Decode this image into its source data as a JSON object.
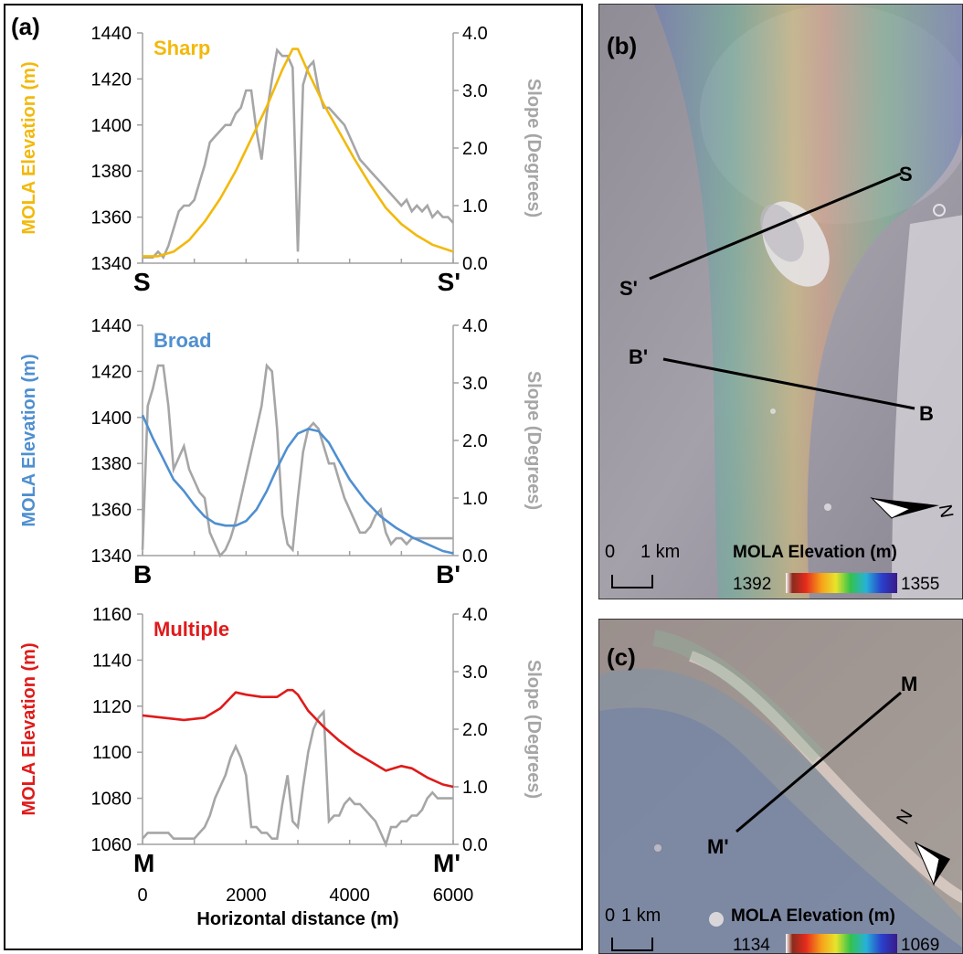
{
  "panel_a": {
    "label": "(a)",
    "x_axis": {
      "title": "Horizontal distance (m)",
      "ticks": [
        "0",
        "2000",
        "4000",
        "6000"
      ]
    }
  },
  "panel_b": {
    "label": "(b)",
    "profile_labels": [
      "S",
      "S'",
      "B'",
      "B"
    ],
    "scale_bar": {
      "zero": "0",
      "length": "1 km"
    },
    "colorbar": {
      "title": "MOLA Elevation (m)",
      "min_label": "1392",
      "max_label": "1355"
    },
    "north_label": "N"
  },
  "panel_c": {
    "label": "(c)",
    "profile_labels": [
      "M",
      "M'"
    ],
    "scale_bar": {
      "zero": "0",
      "length": "1 km"
    },
    "colorbar": {
      "title": "MOLA Elevation (m)",
      "min_label": "1134",
      "max_label": "1069"
    },
    "north_label": "N"
  },
  "chart_data": [
    {
      "type": "line",
      "annotation": "Sharp",
      "ylabel": "MOLA Elevation (m)",
      "y2label": "Slope (Degrees)",
      "ylim": [
        1340,
        1440
      ],
      "yticks": [
        "1440",
        "1420",
        "1400",
        "1380",
        "1360",
        "1340"
      ],
      "y2lim": [
        0,
        4
      ],
      "y2ticks": [
        "4.0",
        "3.0",
        "2.0",
        "1.0",
        "0.0"
      ],
      "xlim": [
        0,
        6000
      ],
      "endpoint_labels": [
        "S",
        "S'"
      ],
      "colors": {
        "elevation": "#f2b90c",
        "slope": "#a6a6a6"
      },
      "elevation": {
        "x": [
          0,
          300,
          600,
          900,
          1200,
          1500,
          1800,
          2100,
          2400,
          2700,
          2900,
          3000,
          3200,
          3500,
          3800,
          4100,
          4400,
          4700,
          5000,
          5300,
          5600,
          6000
        ],
        "y": [
          1343,
          1343,
          1345,
          1350,
          1358,
          1368,
          1380,
          1394,
          1408,
          1424,
          1433,
          1433,
          1423,
          1409,
          1397,
          1385,
          1374,
          1364,
          1357,
          1352,
          1348,
          1345
        ]
      },
      "slope": {
        "x": [
          0,
          100,
          200,
          300,
          400,
          500,
          600,
          700,
          800,
          900,
          1000,
          1100,
          1200,
          1300,
          1400,
          1500,
          1600,
          1700,
          1800,
          1900,
          2000,
          2100,
          2200,
          2300,
          2400,
          2500,
          2600,
          2700,
          2800,
          2900,
          3000,
          3100,
          3200,
          3300,
          3400,
          3500,
          3600,
          3700,
          3800,
          3900,
          4000,
          4100,
          4200,
          4300,
          4400,
          4500,
          4600,
          4700,
          4800,
          4900,
          5000,
          5100,
          5200,
          5300,
          5400,
          5500,
          5600,
          5700,
          5800,
          5900,
          6000
        ],
        "y": [
          0.1,
          0.1,
          0.1,
          0.2,
          0.1,
          0.3,
          0.6,
          0.9,
          1.0,
          1.0,
          1.1,
          1.4,
          1.7,
          2.1,
          2.2,
          2.3,
          2.4,
          2.4,
          2.6,
          2.7,
          3.0,
          3.0,
          2.3,
          1.8,
          2.6,
          3.2,
          3.7,
          3.6,
          3.6,
          3.4,
          0.2,
          3.1,
          3.4,
          3.5,
          3.0,
          2.7,
          2.7,
          2.6,
          2.5,
          2.4,
          2.2,
          2.0,
          1.8,
          1.7,
          1.6,
          1.5,
          1.4,
          1.3,
          1.2,
          1.1,
          1.0,
          1.1,
          0.9,
          1.0,
          0.9,
          1.0,
          0.8,
          0.9,
          0.8,
          0.8,
          0.7
        ]
      }
    },
    {
      "type": "line",
      "annotation": "Broad",
      "ylabel": "MOLA Elevation (m)",
      "y2label": "Slope (Degrees)",
      "ylim": [
        1340,
        1440
      ],
      "yticks": [
        "1440",
        "1420",
        "1400",
        "1380",
        "1360",
        "1340"
      ],
      "y2lim": [
        0,
        4
      ],
      "y2ticks": [
        "4.0",
        "3.0",
        "2.0",
        "1.0",
        "0.0"
      ],
      "xlim": [
        0,
        6000
      ],
      "endpoint_labels": [
        "B",
        "B'"
      ],
      "colors": {
        "elevation": "#4f8fd0",
        "slope": "#a6a6a6"
      },
      "elevation": {
        "x": [
          0,
          200,
          400,
          600,
          800,
          1000,
          1200,
          1400,
          1600,
          1800,
          2000,
          2200,
          2400,
          2600,
          2800,
          3000,
          3200,
          3400,
          3600,
          3800,
          4000,
          4300,
          4600,
          4900,
          5200,
          5500,
          5800,
          6000
        ],
        "y": [
          1401,
          1391,
          1382,
          1373,
          1368,
          1362,
          1357,
          1354,
          1353,
          1353,
          1355,
          1360,
          1368,
          1378,
          1387,
          1393,
          1395,
          1394,
          1389,
          1381,
          1373,
          1364,
          1357,
          1352,
          1348,
          1345,
          1342,
          1341
        ]
      },
      "slope": {
        "x": [
          0,
          100,
          200,
          300,
          400,
          500,
          600,
          700,
          800,
          900,
          1000,
          1100,
          1200,
          1300,
          1400,
          1500,
          1600,
          1700,
          1800,
          1900,
          2000,
          2100,
          2200,
          2300,
          2400,
          2500,
          2600,
          2700,
          2800,
          2900,
          3000,
          3100,
          3200,
          3300,
          3400,
          3500,
          3600,
          3700,
          3800,
          3900,
          4000,
          4100,
          4200,
          4300,
          4400,
          4500,
          4600,
          4700,
          4800,
          4900,
          5000,
          5100,
          5200,
          5300,
          5400,
          5500,
          5600,
          5700,
          5800,
          5900,
          6000
        ],
        "y": [
          0.1,
          2.6,
          2.9,
          3.3,
          3.3,
          2.6,
          1.5,
          1.7,
          1.9,
          1.5,
          1.3,
          1.1,
          1.0,
          0.4,
          0.2,
          0.0,
          0.1,
          0.3,
          0.6,
          1.0,
          1.4,
          1.8,
          2.2,
          2.6,
          3.3,
          3.2,
          2.2,
          0.7,
          0.2,
          0.1,
          1.0,
          1.8,
          2.2,
          2.3,
          2.2,
          1.9,
          1.6,
          1.6,
          1.3,
          1.0,
          0.8,
          0.6,
          0.4,
          0.4,
          0.5,
          0.7,
          0.8,
          0.4,
          0.2,
          0.3,
          0.3,
          0.2,
          0.3,
          0.3,
          0.3,
          0.3,
          0.3,
          0.3,
          0.3,
          0.3,
          0.3
        ]
      }
    },
    {
      "type": "line",
      "annotation": "Multiple",
      "ylabel": "MOLA Elevation (m)",
      "y2label": "Slope (Degrees)",
      "ylim": [
        1060,
        1160
      ],
      "yticks": [
        "1160",
        "1140",
        "1120",
        "1100",
        "1080",
        "1060"
      ],
      "y2lim": [
        0,
        4
      ],
      "y2ticks": [
        "4.0",
        "3.0",
        "2.0",
        "1.0",
        "0.0"
      ],
      "xlim": [
        0,
        6000
      ],
      "endpoint_labels": [
        "M",
        "M'"
      ],
      "colors": {
        "elevation": "#e01a1a",
        "slope": "#a6a6a6"
      },
      "elevation": {
        "x": [
          0,
          400,
          800,
          1200,
          1500,
          1800,
          2000,
          2300,
          2600,
          2800,
          2900,
          3000,
          3200,
          3500,
          3800,
          4100,
          4400,
          4700,
          5000,
          5200,
          5500,
          5800,
          6000
        ],
        "y": [
          1116,
          1115,
          1114,
          1115,
          1119,
          1126,
          1125,
          1124,
          1124,
          1127,
          1127,
          1125,
          1118,
          1111,
          1105,
          1100,
          1096,
          1092,
          1094,
          1093,
          1089,
          1086,
          1085
        ]
      },
      "slope": {
        "x": [
          0,
          100,
          200,
          300,
          400,
          500,
          600,
          700,
          800,
          900,
          1000,
          1100,
          1200,
          1300,
          1400,
          1500,
          1600,
          1700,
          1800,
          1900,
          2000,
          2100,
          2200,
          2300,
          2400,
          2500,
          2600,
          2700,
          2800,
          2900,
          3000,
          3100,
          3200,
          3300,
          3400,
          3500,
          3600,
          3700,
          3800,
          3900,
          4000,
          4100,
          4200,
          4300,
          4400,
          4500,
          4600,
          4700,
          4800,
          4900,
          5000,
          5100,
          5200,
          5300,
          5400,
          5500,
          5600,
          5700,
          5800,
          5900,
          6000
        ],
        "y": [
          0.1,
          0.2,
          0.2,
          0.2,
          0.2,
          0.2,
          0.1,
          0.1,
          0.1,
          0.1,
          0.1,
          0.2,
          0.3,
          0.5,
          0.8,
          1.0,
          1.2,
          1.5,
          1.7,
          1.5,
          1.2,
          0.3,
          0.3,
          0.2,
          0.2,
          0.1,
          0.1,
          0.7,
          1.2,
          0.4,
          0.3,
          1.0,
          1.6,
          2.0,
          2.2,
          2.3,
          0.4,
          0.5,
          0.5,
          0.7,
          0.8,
          0.7,
          0.7,
          0.6,
          0.5,
          0.4,
          0.2,
          0.0,
          0.3,
          0.3,
          0.4,
          0.4,
          0.5,
          0.5,
          0.6,
          0.8,
          0.9,
          0.8,
          0.8,
          0.8,
          0.8
        ]
      }
    }
  ]
}
